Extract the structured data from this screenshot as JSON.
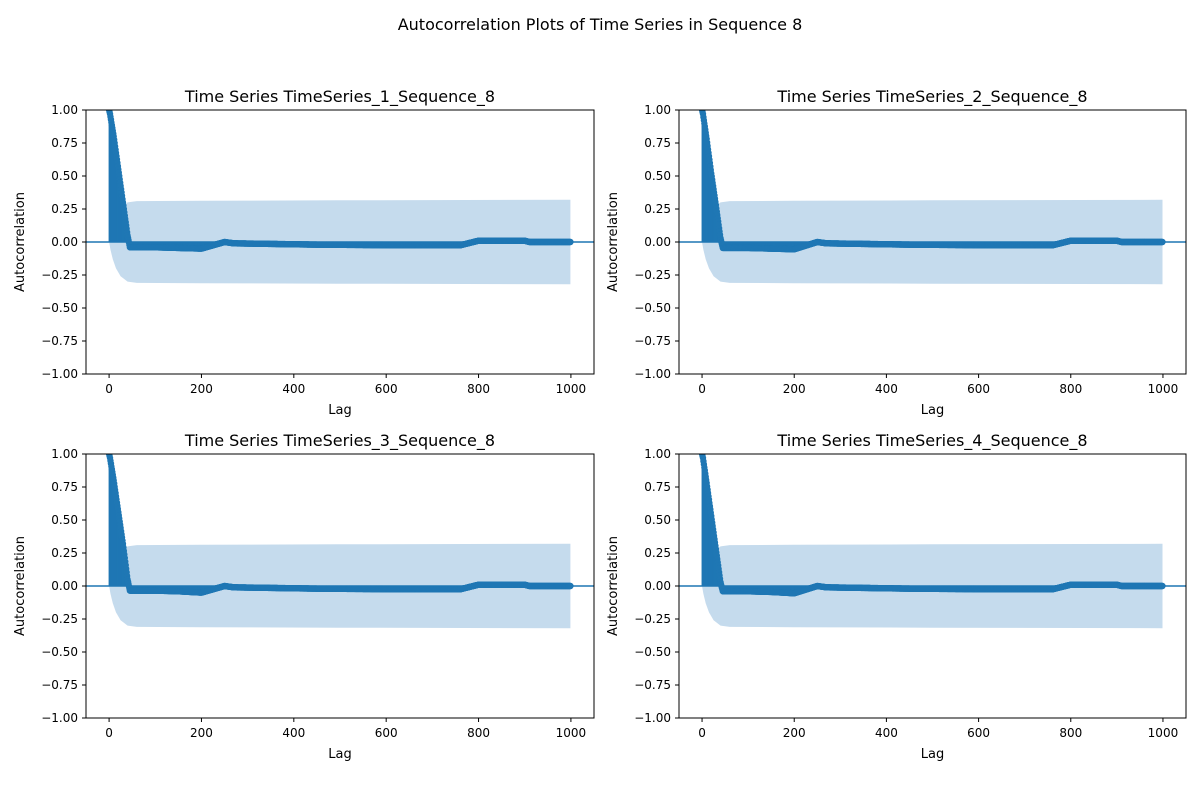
{
  "figure": {
    "title": "Autocorrelation Plots of Time Series in Sequence 8"
  },
  "colors": {
    "series": "#1f77b4",
    "band": "#c5dbed",
    "axis": "#000000"
  },
  "chart_data": [
    {
      "type": "scatter",
      "title": "Time Series TimeSeries_1_Sequence_8",
      "xlabel": "Lag",
      "ylabel": "Autocorrelation",
      "xlim": [
        -50,
        1050
      ],
      "ylim": [
        -1.0,
        1.0
      ],
      "xticks": [
        0,
        200,
        400,
        600,
        800,
        1000
      ],
      "yticks": [
        -1.0,
        -0.75,
        -0.5,
        -0.25,
        0.0,
        0.25,
        0.5,
        0.75,
        1.0
      ],
      "ytick_labels": [
        "−1.00",
        "−0.75",
        "−0.50",
        "−0.25",
        "0.00",
        "0.25",
        "0.50",
        "0.75",
        "1.00"
      ],
      "grid": false,
      "stem_baseline": 0,
      "acf_profile": [
        [
          0,
          1.0
        ],
        [
          2,
          0.97
        ],
        [
          10,
          0.8
        ],
        [
          20,
          0.55
        ],
        [
          30,
          0.3
        ],
        [
          40,
          0.05
        ],
        [
          45,
          -0.04
        ],
        [
          100,
          -0.04
        ],
        [
          150,
          -0.045
        ],
        [
          200,
          -0.05
        ],
        [
          250,
          0.0
        ],
        [
          270,
          -0.01
        ],
        [
          450,
          -0.02
        ],
        [
          640,
          -0.025
        ],
        [
          760,
          -0.025
        ],
        [
          800,
          0.01
        ],
        [
          900,
          0.01
        ],
        [
          910,
          0.0
        ],
        [
          999,
          0.0
        ]
      ],
      "confidence_band": [
        [
          0,
          0.0
        ],
        [
          3,
          0.06
        ],
        [
          8,
          0.13
        ],
        [
          15,
          0.2
        ],
        [
          25,
          0.26
        ],
        [
          40,
          0.3
        ],
        [
          60,
          0.31
        ],
        [
          200,
          0.312
        ],
        [
          500,
          0.316
        ],
        [
          999,
          0.32
        ]
      ]
    },
    {
      "type": "scatter",
      "title": "Time Series TimeSeries_2_Sequence_8",
      "xlabel": "Lag",
      "ylabel": "Autocorrelation",
      "xlim": [
        -50,
        1050
      ],
      "ylim": [
        -1.0,
        1.0
      ],
      "xticks": [
        0,
        200,
        400,
        600,
        800,
        1000
      ],
      "yticks": [
        -1.0,
        -0.75,
        -0.5,
        -0.25,
        0.0,
        0.25,
        0.5,
        0.75,
        1.0
      ],
      "ytick_labels": [
        "−1.00",
        "−0.75",
        "−0.50",
        "−0.25",
        "0.00",
        "0.25",
        "0.50",
        "0.75",
        "1.00"
      ],
      "grid": false,
      "stem_baseline": 0,
      "acf_profile": [
        [
          0,
          1.0
        ],
        [
          2,
          0.97
        ],
        [
          10,
          0.78
        ],
        [
          20,
          0.52
        ],
        [
          30,
          0.28
        ],
        [
          40,
          0.03
        ],
        [
          45,
          -0.045
        ],
        [
          100,
          -0.045
        ],
        [
          150,
          -0.05
        ],
        [
          200,
          -0.055
        ],
        [
          250,
          0.0
        ],
        [
          270,
          -0.01
        ],
        [
          450,
          -0.02
        ],
        [
          640,
          -0.025
        ],
        [
          760,
          -0.025
        ],
        [
          800,
          0.01
        ],
        [
          900,
          0.01
        ],
        [
          910,
          0.0
        ],
        [
          999,
          0.0
        ]
      ],
      "confidence_band": [
        [
          0,
          0.0
        ],
        [
          3,
          0.06
        ],
        [
          8,
          0.13
        ],
        [
          15,
          0.2
        ],
        [
          25,
          0.26
        ],
        [
          40,
          0.3
        ],
        [
          60,
          0.31
        ],
        [
          200,
          0.312
        ],
        [
          500,
          0.316
        ],
        [
          999,
          0.32
        ]
      ]
    },
    {
      "type": "scatter",
      "title": "Time Series TimeSeries_3_Sequence_8",
      "xlabel": "Lag",
      "ylabel": "Autocorrelation",
      "xlim": [
        -50,
        1050
      ],
      "ylim": [
        -1.0,
        1.0
      ],
      "xticks": [
        0,
        200,
        400,
        600,
        800,
        1000
      ],
      "yticks": [
        -1.0,
        -0.75,
        -0.5,
        -0.25,
        0.0,
        0.25,
        0.5,
        0.75,
        1.0
      ],
      "ytick_labels": [
        "−1.00",
        "−0.75",
        "−0.50",
        "−0.25",
        "0.00",
        "0.25",
        "0.50",
        "0.75",
        "1.00"
      ],
      "grid": false,
      "stem_baseline": 0,
      "acf_profile": [
        [
          0,
          1.0
        ],
        [
          2,
          0.97
        ],
        [
          10,
          0.8
        ],
        [
          20,
          0.56
        ],
        [
          30,
          0.32
        ],
        [
          40,
          0.05
        ],
        [
          45,
          -0.035
        ],
        [
          100,
          -0.035
        ],
        [
          150,
          -0.04
        ],
        [
          200,
          -0.05
        ],
        [
          250,
          0.0
        ],
        [
          270,
          -0.01
        ],
        [
          450,
          -0.02
        ],
        [
          640,
          -0.025
        ],
        [
          760,
          -0.025
        ],
        [
          800,
          0.01
        ],
        [
          900,
          0.01
        ],
        [
          910,
          0.0
        ],
        [
          999,
          0.0
        ]
      ],
      "confidence_band": [
        [
          0,
          0.0
        ],
        [
          3,
          0.06
        ],
        [
          8,
          0.13
        ],
        [
          15,
          0.2
        ],
        [
          25,
          0.26
        ],
        [
          40,
          0.3
        ],
        [
          60,
          0.31
        ],
        [
          200,
          0.312
        ],
        [
          500,
          0.316
        ],
        [
          999,
          0.32
        ]
      ]
    },
    {
      "type": "scatter",
      "title": "Time Series TimeSeries_4_Sequence_8",
      "xlabel": "Lag",
      "ylabel": "Autocorrelation",
      "xlim": [
        -50,
        1050
      ],
      "ylim": [
        -1.0,
        1.0
      ],
      "xticks": [
        0,
        200,
        400,
        600,
        800,
        1000
      ],
      "yticks": [
        -1.0,
        -0.75,
        -0.5,
        -0.25,
        0.0,
        0.25,
        0.5,
        0.75,
        1.0
      ],
      "ytick_labels": [
        "−1.00",
        "−0.75",
        "−0.50",
        "−0.25",
        "0.00",
        "0.25",
        "0.50",
        "0.75",
        "1.00"
      ],
      "grid": false,
      "stem_baseline": 0,
      "acf_profile": [
        [
          0,
          1.0
        ],
        [
          2,
          0.97
        ],
        [
          10,
          0.78
        ],
        [
          20,
          0.53
        ],
        [
          30,
          0.28
        ],
        [
          40,
          0.03
        ],
        [
          45,
          -0.04
        ],
        [
          100,
          -0.04
        ],
        [
          150,
          -0.045
        ],
        [
          200,
          -0.055
        ],
        [
          250,
          0.0
        ],
        [
          270,
          -0.01
        ],
        [
          450,
          -0.02
        ],
        [
          640,
          -0.025
        ],
        [
          760,
          -0.025
        ],
        [
          800,
          0.01
        ],
        [
          900,
          0.01
        ],
        [
          910,
          0.0
        ],
        [
          999,
          0.0
        ]
      ],
      "confidence_band": [
        [
          0,
          0.0
        ],
        [
          3,
          0.06
        ],
        [
          8,
          0.13
        ],
        [
          15,
          0.2
        ],
        [
          25,
          0.26
        ],
        [
          40,
          0.3
        ],
        [
          60,
          0.31
        ],
        [
          200,
          0.312
        ],
        [
          500,
          0.316
        ],
        [
          999,
          0.32
        ]
      ]
    }
  ]
}
